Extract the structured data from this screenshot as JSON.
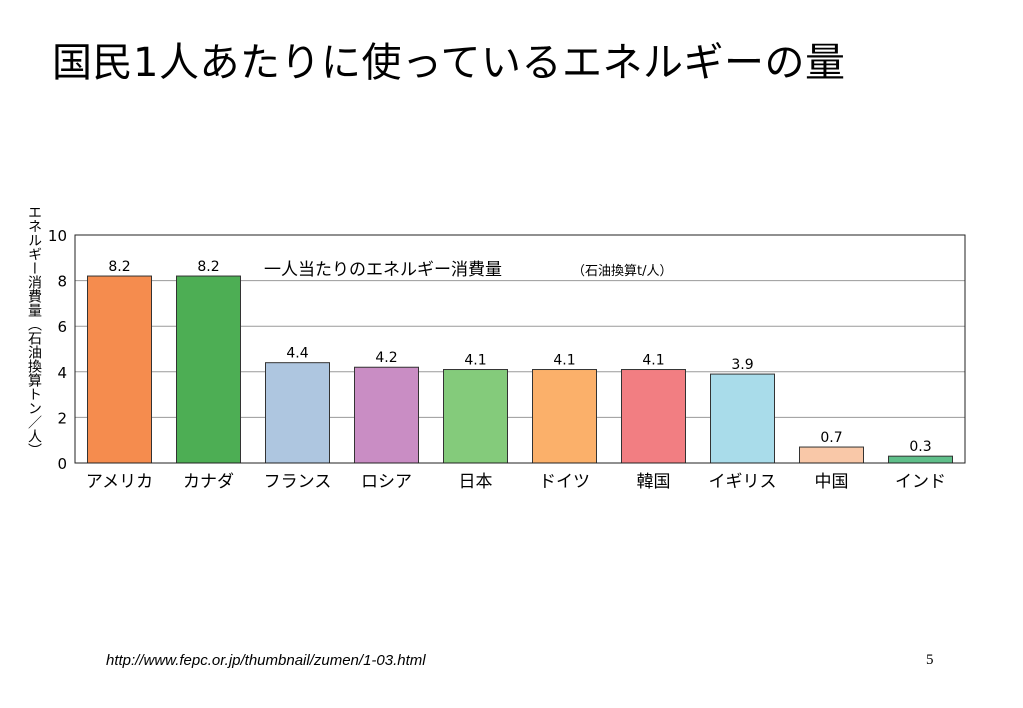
{
  "slide": {
    "title": "国民1人あたりに使っているエネルギーの量",
    "footer_url": "http://www.fepc.or.jp/thumbnail/zumen/1-03.html",
    "page_number": "5"
  },
  "chart_data": {
    "type": "bar",
    "title": "一人当たりのエネルギー消費量",
    "title_unit": "（石油換算t/人）",
    "ylabel": "エネルギー消費量（石油換算トン／人）",
    "xlabel": "",
    "ylim": [
      0,
      10
    ],
    "yticks": [
      0,
      2,
      4,
      6,
      8,
      10
    ],
    "grid": true,
    "categories": [
      "アメリカ",
      "カナダ",
      "フランス",
      "ロシア",
      "日本",
      "ドイツ",
      "韓国",
      "イギリス",
      "中国",
      "インド"
    ],
    "values": [
      8.2,
      8.2,
      4.4,
      4.2,
      4.1,
      4.1,
      4.1,
      3.9,
      0.7,
      0.3
    ],
    "value_labels": [
      "8.2",
      "8.2",
      "4.4",
      "4.2",
      "4.1",
      "4.1",
      "4.1",
      "3.9",
      "0.7",
      "0.3"
    ],
    "colors": [
      "#F58C4E",
      "#4DAE54",
      "#AEC6E0",
      "#C98DC4",
      "#84CB7B",
      "#FBB06A",
      "#F27E82",
      "#A9DCEA",
      "#F9C8A8",
      "#5FBF8A"
    ]
  }
}
